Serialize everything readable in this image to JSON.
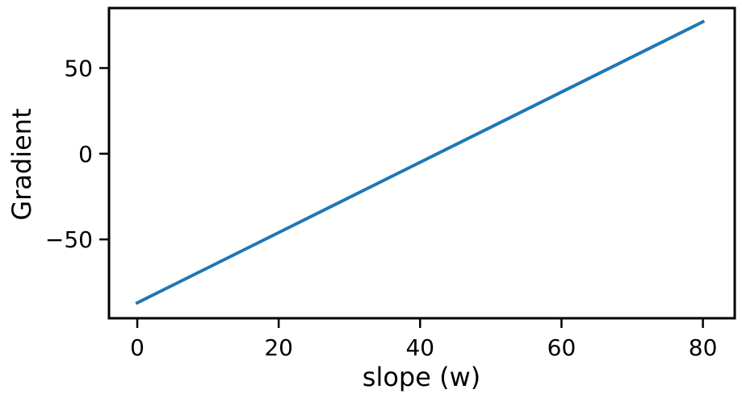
{
  "chart_data": {
    "type": "line",
    "title": "",
    "xlabel": "slope (w)",
    "ylabel": "Gradient",
    "xlim": [
      -4,
      84.5
    ],
    "ylim": [
      -96,
      85
    ],
    "xticks": [
      0,
      20,
      40,
      60,
      80
    ],
    "yticks": [
      -50,
      0,
      50
    ],
    "xtick_labels": [
      "0",
      "20",
      "40",
      "60",
      "80"
    ],
    "ytick_labels": [
      "−50",
      "0",
      "50"
    ],
    "grid": false,
    "legend": "none",
    "series": [
      {
        "color": "#1f77b4",
        "x": [
          0,
          80
        ],
        "y": [
          -87,
          77
        ]
      }
    ]
  }
}
